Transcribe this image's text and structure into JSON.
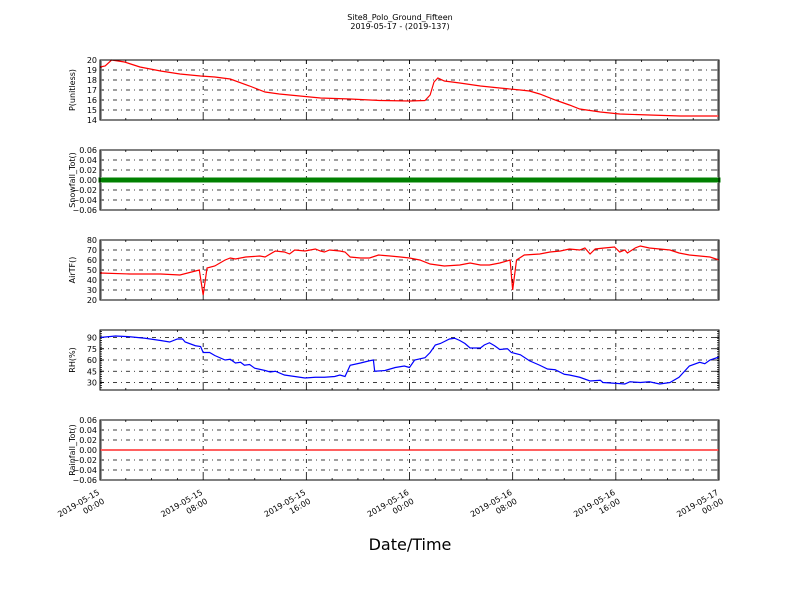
{
  "chart_data": {
    "type": "line",
    "title": "Site8_Polo_Ground_Fifteen",
    "subtitle": "2019-05-17 - (2019-137)",
    "xlabel": "Date/Time",
    "x_units": "hours since 2019-05-15 00:00",
    "xlim": [
      0,
      48
    ],
    "x_ticks": [
      0,
      8,
      16,
      24,
      32,
      40,
      48
    ],
    "x_tick_labels": [
      [
        "2019-05-15",
        "00:00"
      ],
      [
        "2019-05-15",
        "08:00"
      ],
      [
        "2019-05-15",
        "16:00"
      ],
      [
        "2019-05-16",
        "00:00"
      ],
      [
        "2019-05-16",
        "08:00"
      ],
      [
        "2019-05-16",
        "16:00"
      ],
      [
        "2019-05-17",
        "00:00"
      ]
    ],
    "grid": true,
    "panels": [
      {
        "ylabel": "P(unitless)",
        "ylim": [
          14,
          20
        ],
        "yticks": [
          14,
          15,
          16,
          17,
          18,
          19,
          20
        ],
        "tick_labels": [
          "14",
          "15",
          "16",
          "17",
          "18",
          "19",
          "20"
        ],
        "color": "#ff0000",
        "style": "line",
        "points": [
          [
            0,
            19.3
          ],
          [
            0.4,
            19.4
          ],
          [
            0.9,
            20
          ],
          [
            1.9,
            19.8
          ],
          [
            3.1,
            19.3
          ],
          [
            4.7,
            18.9
          ],
          [
            6.2,
            18.6
          ],
          [
            7.8,
            18.4
          ],
          [
            8.9,
            18.3
          ],
          [
            10.1,
            18.1
          ],
          [
            11.6,
            17.4
          ],
          [
            12.8,
            16.8
          ],
          [
            13.9,
            16.6
          ],
          [
            15.5,
            16.4
          ],
          [
            17.1,
            16.2
          ],
          [
            19.4,
            16.1
          ],
          [
            21.7,
            15.95
          ],
          [
            24,
            15.9
          ],
          [
            25.2,
            15.95
          ],
          [
            25.6,
            16.5
          ],
          [
            25.9,
            17.8
          ],
          [
            26.2,
            18.2
          ],
          [
            26.7,
            17.9
          ],
          [
            27.9,
            17.7
          ],
          [
            29.5,
            17.4
          ],
          [
            31,
            17.2
          ],
          [
            32.6,
            17.0
          ],
          [
            33.3,
            16.9
          ],
          [
            34.1,
            16.6
          ],
          [
            35.3,
            16.0
          ],
          [
            36.4,
            15.5
          ],
          [
            37.2,
            15.1
          ],
          [
            38.8,
            14.8
          ],
          [
            40.3,
            14.6
          ],
          [
            42.6,
            14.5
          ],
          [
            45,
            14.4
          ],
          [
            48,
            14.4
          ]
        ]
      },
      {
        "ylabel": "Snowfall_Tot()",
        "ylim": [
          -0.06,
          0.06
        ],
        "yticks": [
          -0.06,
          -0.04,
          -0.02,
          0,
          0.02,
          0.04,
          0.06
        ],
        "tick_labels": [
          "−0.06",
          "−0.04",
          "−0.02",
          "0.00",
          "0.02",
          "0.04",
          "0.06"
        ],
        "color": "#008000",
        "style": "markers",
        "points": [
          [
            0,
            0
          ],
          [
            48,
            0
          ]
        ]
      },
      {
        "ylabel": "AirTF()",
        "ylim": [
          20,
          80
        ],
        "yticks": [
          20,
          30,
          40,
          50,
          60,
          70,
          80
        ],
        "tick_labels": [
          "20",
          "30",
          "40",
          "50",
          "60",
          "70",
          "80"
        ],
        "color": "#ff0000",
        "style": "line",
        "points": [
          [
            0,
            47
          ],
          [
            2.3,
            46
          ],
          [
            4.7,
            46
          ],
          [
            6.2,
            45
          ],
          [
            7.4,
            49
          ],
          [
            7.7,
            50
          ],
          [
            8,
            25
          ],
          [
            8.3,
            52
          ],
          [
            8.9,
            54
          ],
          [
            9.7,
            60
          ],
          [
            10.1,
            62
          ],
          [
            10.5,
            61
          ],
          [
            11.3,
            63
          ],
          [
            12.4,
            64
          ],
          [
            12.8,
            63
          ],
          [
            13.6,
            69
          ],
          [
            14.3,
            68
          ],
          [
            14.7,
            66
          ],
          [
            15.1,
            70
          ],
          [
            15.9,
            69
          ],
          [
            16.3,
            70
          ],
          [
            16.7,
            71
          ],
          [
            17.1,
            69
          ],
          [
            17.4,
            68
          ],
          [
            17.8,
            70
          ],
          [
            18.6,
            69
          ],
          [
            19,
            68
          ],
          [
            19.4,
            63
          ],
          [
            20.2,
            62
          ],
          [
            20.9,
            62
          ],
          [
            21.6,
            65
          ],
          [
            22.5,
            64
          ],
          [
            23.3,
            63
          ],
          [
            24,
            62
          ],
          [
            24.8,
            60
          ],
          [
            25.6,
            56
          ],
          [
            26.7,
            54
          ],
          [
            27.9,
            55
          ],
          [
            28.7,
            57
          ],
          [
            29.5,
            55
          ],
          [
            30.2,
            55
          ],
          [
            31,
            57
          ],
          [
            31.8,
            60
          ],
          [
            32,
            30
          ],
          [
            32.3,
            60
          ],
          [
            32.9,
            65
          ],
          [
            34.1,
            66
          ],
          [
            34.9,
            68
          ],
          [
            35.7,
            69
          ],
          [
            36.4,
            71
          ],
          [
            37.2,
            70
          ],
          [
            37.6,
            72
          ],
          [
            38,
            66
          ],
          [
            38.4,
            71
          ],
          [
            39.1,
            72
          ],
          [
            39.9,
            73
          ],
          [
            40.3,
            68
          ],
          [
            40.7,
            70
          ],
          [
            40.9,
            67
          ],
          [
            41.5,
            72
          ],
          [
            41.9,
            74
          ],
          [
            42.6,
            72
          ],
          [
            44.2,
            70
          ],
          [
            44.9,
            67
          ],
          [
            45.7,
            65
          ],
          [
            46.5,
            64
          ],
          [
            47.3,
            63
          ],
          [
            48,
            60
          ]
        ]
      },
      {
        "ylabel": "RH(%)",
        "ylim": [
          20,
          100
        ],
        "yticks": [
          30,
          45,
          60,
          75,
          90
        ],
        "tick_labels": [
          "30",
          "45",
          "60",
          "75",
          "90"
        ],
        "color": "#0000ff",
        "style": "line",
        "points": [
          [
            0,
            90
          ],
          [
            1.2,
            92
          ],
          [
            2.3,
            91
          ],
          [
            3.5,
            89
          ],
          [
            4.7,
            86
          ],
          [
            5.4,
            84
          ],
          [
            6,
            88
          ],
          [
            6.4,
            88
          ],
          [
            6.6,
            84
          ],
          [
            7.4,
            79
          ],
          [
            7.8,
            78
          ],
          [
            8,
            70
          ],
          [
            8.5,
            70
          ],
          [
            8.9,
            66
          ],
          [
            9.7,
            60
          ],
          [
            10.1,
            61
          ],
          [
            10.5,
            56
          ],
          [
            10.9,
            57
          ],
          [
            11.2,
            53
          ],
          [
            11.6,
            54
          ],
          [
            12,
            49
          ],
          [
            12.8,
            46
          ],
          [
            13.2,
            44
          ],
          [
            13.6,
            45
          ],
          [
            14.3,
            40
          ],
          [
            15.1,
            38
          ],
          [
            15.9,
            36
          ],
          [
            16.7,
            37
          ],
          [
            17.4,
            37
          ],
          [
            18.2,
            38
          ],
          [
            18.6,
            40
          ],
          [
            19,
            38
          ],
          [
            19.4,
            53
          ],
          [
            20.2,
            56
          ],
          [
            20.9,
            59
          ],
          [
            21.2,
            60
          ],
          [
            21.3,
            45
          ],
          [
            22.1,
            46
          ],
          [
            22.9,
            50
          ],
          [
            23.6,
            52
          ],
          [
            24,
            50
          ],
          [
            24.4,
            60
          ],
          [
            25.2,
            63
          ],
          [
            25.6,
            70
          ],
          [
            26,
            80
          ],
          [
            26.4,
            82
          ],
          [
            27.1,
            88
          ],
          [
            27.5,
            89
          ],
          [
            27.9,
            86
          ],
          [
            28.3,
            82
          ],
          [
            28.7,
            76
          ],
          [
            29.5,
            76
          ],
          [
            29.8,
            80
          ],
          [
            30.2,
            83
          ],
          [
            30.6,
            79
          ],
          [
            31,
            74
          ],
          [
            31.6,
            75
          ],
          [
            31.9,
            70
          ],
          [
            32.6,
            67
          ],
          [
            33.3,
            59
          ],
          [
            34.1,
            53
          ],
          [
            34.7,
            48
          ],
          [
            35.3,
            47
          ],
          [
            36,
            41
          ],
          [
            36.4,
            40
          ],
          [
            37.2,
            37
          ],
          [
            38,
            32
          ],
          [
            38.8,
            33
          ],
          [
            39,
            30
          ],
          [
            39.9,
            29
          ],
          [
            40.7,
            28
          ],
          [
            41.1,
            31
          ],
          [
            41.9,
            30
          ],
          [
            42.6,
            31
          ],
          [
            43.4,
            28
          ],
          [
            44.2,
            30
          ],
          [
            44.9,
            37
          ],
          [
            45.7,
            52
          ],
          [
            46.5,
            57
          ],
          [
            46.9,
            55
          ],
          [
            47.3,
            60
          ],
          [
            48,
            64
          ]
        ]
      },
      {
        "ylabel": "Rainfall_Tot()",
        "ylim": [
          -0.06,
          0.06
        ],
        "yticks": [
          -0.06,
          -0.04,
          -0.02,
          0,
          0.02,
          0.04,
          0.06
        ],
        "tick_labels": [
          "−0.06",
          "−0.04",
          "−0.02",
          "0.00",
          "0.02",
          "0.04",
          "0.06"
        ],
        "color": "#ff0000",
        "style": "line",
        "points": [
          [
            0,
            0
          ],
          [
            48,
            0
          ]
        ]
      }
    ]
  }
}
